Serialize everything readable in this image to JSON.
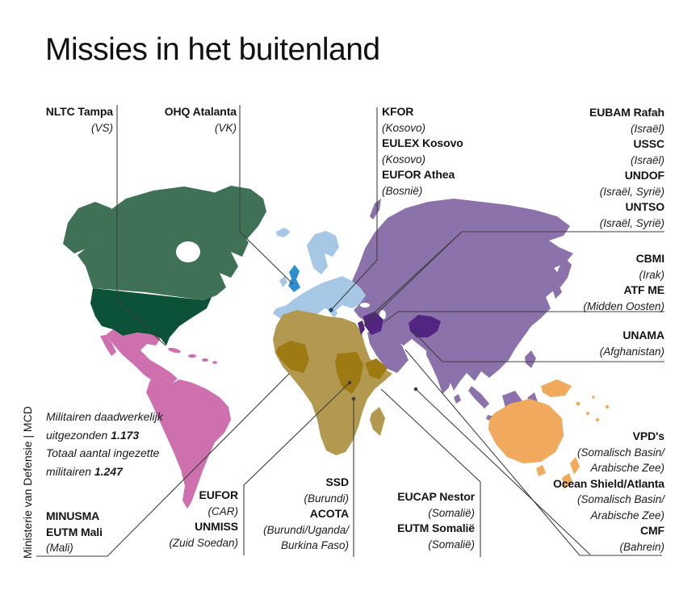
{
  "title": "Missies in het buitenland",
  "credit": "Ministerie van Defensie | MCD",
  "stats": {
    "l1": "Militairen daadwerkelijk",
    "l2a": "uitgezonden ",
    "l2b": "1.173",
    "l3": "Totaal aantal ingezette",
    "l4a": "militairen ",
    "l4b": "1.247"
  },
  "labels": {
    "nltc": {
      "lines": [
        {
          "t": "NLTC Tampa",
          "cls": "lb"
        },
        {
          "t": "(VS)",
          "cls": "li"
        }
      ]
    },
    "ohq": {
      "lines": [
        {
          "t": "OHQ Atalanta",
          "cls": "lb"
        },
        {
          "t": "(VK)",
          "cls": "li"
        }
      ]
    },
    "balkan": {
      "lines": [
        {
          "t": "KFOR",
          "cls": "lb"
        },
        {
          "t": "(Kosovo)",
          "cls": "li"
        },
        {
          "t": "EULEX Kosovo",
          "cls": "lb"
        },
        {
          "t": "(Kosovo)",
          "cls": "li"
        },
        {
          "t": "EUFOR Athea",
          "cls": "lb"
        },
        {
          "t": "(Bosnië)",
          "cls": "li"
        }
      ]
    },
    "levant": {
      "lines": [
        {
          "t": "EUBAM Rafah",
          "cls": "lb"
        },
        {
          "t": "(Israël)",
          "cls": "li"
        },
        {
          "t": "USSC",
          "cls": "lb"
        },
        {
          "t": "(Israël)",
          "cls": "li"
        },
        {
          "t": "UNDOF",
          "cls": "lb"
        },
        {
          "t": "(Israël, Syrië)",
          "cls": "li"
        },
        {
          "t": "UNTSO",
          "cls": "lb"
        },
        {
          "t": "(Israël, Syrië)",
          "cls": "li"
        }
      ]
    },
    "iraq": {
      "lines": [
        {
          "t": "CBMI",
          "cls": "lb"
        },
        {
          "t": "(Irak)",
          "cls": "li"
        },
        {
          "t": "ATF ME",
          "cls": "lb"
        },
        {
          "t": "(Midden Oosten)",
          "cls": "li"
        }
      ]
    },
    "unama": {
      "lines": [
        {
          "t": "UNAMA",
          "cls": "lb"
        },
        {
          "t": "(Afghanistan)",
          "cls": "li"
        }
      ]
    },
    "maritime": {
      "lines": [
        {
          "t": "VPD's",
          "cls": "lb"
        },
        {
          "t": "(Somalisch Basin/",
          "cls": "li"
        },
        {
          "t": "Arabische Zee)",
          "cls": "li"
        },
        {
          "t": "Ocean Shield/Atlanta",
          "cls": "lb"
        },
        {
          "t": "(Somalisch Basin/",
          "cls": "li"
        },
        {
          "t": "Arabische Zee)",
          "cls": "li"
        },
        {
          "t": "CMF",
          "cls": "lb"
        },
        {
          "t": "(Bahrein)",
          "cls": "li"
        }
      ]
    },
    "mali": {
      "lines": [
        {
          "t": "MINUSMA",
          "cls": "lb"
        },
        {
          "t": "EUTM Mali",
          "cls": "lb"
        },
        {
          "t": "(Mali)",
          "cls": "li"
        }
      ]
    },
    "car": {
      "lines": [
        {
          "t": "EUFOR",
          "cls": "lb"
        },
        {
          "t": "(CAR)",
          "cls": "li"
        },
        {
          "t": "UNMISS",
          "cls": "lb"
        },
        {
          "t": "(Zuid Soedan)",
          "cls": "li"
        }
      ]
    },
    "burundi": {
      "lines": [
        {
          "t": "SSD",
          "cls": "lb"
        },
        {
          "t": "(Burundi)",
          "cls": "li"
        },
        {
          "t": "ACOTA",
          "cls": "lb"
        },
        {
          "t": "(Burundi/Uganda/",
          "cls": "li"
        },
        {
          "t": "Burkina Faso)",
          "cls": "li"
        }
      ]
    },
    "somalia": {
      "lines": [
        {
          "t": "EUCAP Nestor",
          "cls": "lb"
        },
        {
          "t": "(Somalië)",
          "cls": "li"
        },
        {
          "t": "EUTM Somalië",
          "cls": "lb"
        },
        {
          "t": "(Somalië)",
          "cls": "li"
        }
      ]
    }
  },
  "colors": {
    "green": "#3E7156",
    "usaGreen": "#0B5239",
    "pink": "#CE6FAE",
    "lightBlue": "#A6C8E4",
    "ukBlue": "#2E8FD0",
    "purple": "#8B72AA",
    "darkPurple": "#522583",
    "tan": "#B3994F",
    "darkTan": "#9E7B12",
    "orange": "#F0A95D",
    "kosovoBlue": "#1A4A7C",
    "line": "#3F3F3F"
  }
}
